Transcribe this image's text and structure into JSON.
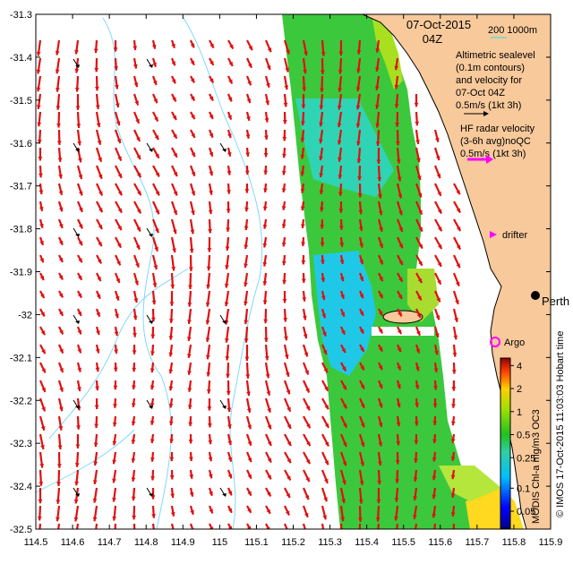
{
  "header": {
    "date": "07-Oct-2015",
    "time": "04Z",
    "bathy_contours": "200  1000m"
  },
  "legend": {
    "altimetric_lines": [
      "Altimetric sealevel",
      "(0.1m contours)",
      "and velocity for",
      "07-Oct 04Z",
      "0.5m/s (1kt 3h)"
    ],
    "hf_lines": [
      "HF radar velocity",
      "(3-6h avg)noQC",
      "0.5m/s (1kt 3h)"
    ],
    "drifter_label": "drifter",
    "argo_label": "Argo",
    "city_label": "Perth",
    "colorbar_title": "MODIS Chl-a mg/m3 OC3",
    "credit": "© IMOS 17-Oct-2015 11:03:03 Hobart time",
    "colorbar_ticks": [
      "4",
      "2",
      "1",
      "0.5",
      "0.25",
      "0.1",
      "0.05"
    ],
    "colorbar_ticks_values": [
      4,
      2,
      1,
      0.5,
      0.25,
      0.1,
      0.05
    ],
    "colorbar_range": [
      0.03,
      5
    ]
  },
  "axes": {
    "xlim": [
      114.5,
      115.9
    ],
    "ylim": [
      -32.5,
      -31.3
    ],
    "xticks": [
      "114.5",
      "114.6",
      "114.7",
      "114.8",
      "114.9",
      "115",
      "115.1",
      "115.2",
      "115.3",
      "115.4",
      "115.5",
      "115.6",
      "115.7",
      "115.8",
      "115.9"
    ],
    "xtick_values": [
      114.5,
      114.6,
      114.7,
      114.8,
      114.9,
      115.0,
      115.1,
      115.2,
      115.3,
      115.4,
      115.5,
      115.6,
      115.7,
      115.8,
      115.9
    ],
    "yticks": [
      "-31.3",
      "-31.4",
      "-31.5",
      "-31.6",
      "-31.7",
      "-31.8",
      "-31.9",
      "-32",
      "-32.1",
      "-32.2",
      "-32.3",
      "-32.4",
      "-32.5"
    ],
    "ytick_values": [
      -31.3,
      -31.4,
      -31.5,
      -31.6,
      -31.7,
      -31.8,
      -31.9,
      -32.0,
      -32.1,
      -32.2,
      -32.3,
      -32.4,
      -32.5
    ]
  },
  "colors": {
    "land": "#f8c99b",
    "coast": "#000000",
    "contour": "#7fd8ff",
    "hf_arrow": "#e01010",
    "alt_arrow": "#000000",
    "drifter": "#ff00ff",
    "argo": "#ff00ff",
    "scale_line": "#6ad9c8"
  },
  "chart_data": {
    "type": "map",
    "xlabel": "",
    "ylabel": "",
    "locations": [
      {
        "name": "Perth",
        "lon": 115.86,
        "lat": -31.95
      },
      {
        "name": "Argo",
        "lon": 115.72,
        "lat": -32.07
      }
    ]
  }
}
